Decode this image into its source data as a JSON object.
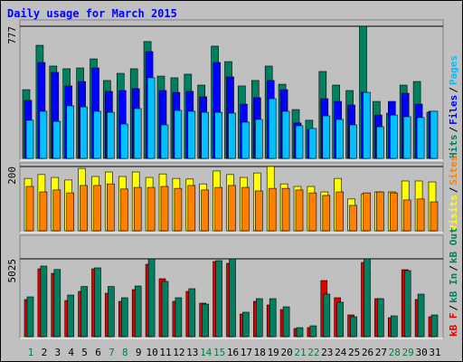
{
  "chart_data": [
    {
      "type": "bar",
      "title": "Daily usage for March 2015",
      "ylim": [
        0,
        777
      ],
      "yticks": [
        777
      ],
      "grid": true,
      "legend_separator": "/",
      "series": [
        {
          "name": "Hits",
          "color": "#008060",
          "values": [
            404,
            665,
            543,
            527,
            532,
            585,
            458,
            500,
            527,
            687,
            484,
            474,
            495,
            431,
            660,
            569,
            426,
            458,
            543,
            436,
            287,
            224,
            511,
            431,
            399,
            777,
            335,
            266,
            431,
            452,
            271
          ]
        },
        {
          "name": "Files",
          "color": "#0000ff",
          "values": [
            341,
            564,
            506,
            426,
            452,
            532,
            394,
            399,
            410,
            628,
            399,
            388,
            394,
            362,
            564,
            479,
            319,
            357,
            458,
            404,
            208,
            170,
            351,
            335,
            314,
            388,
            255,
            335,
            383,
            319,
            277
          ]
        },
        {
          "name": "Pages",
          "color": "#00c0ff",
          "values": [
            224,
            277,
            218,
            309,
            303,
            277,
            271,
            202,
            293,
            474,
            197,
            282,
            277,
            271,
            271,
            266,
            213,
            229,
            351,
            277,
            192,
            176,
            250,
            229,
            197,
            388,
            186,
            255,
            245,
            240,
            277
          ]
        }
      ]
    },
    {
      "type": "bar",
      "ylim": [
        0,
        200
      ],
      "yticks": [
        200
      ],
      "grid": true,
      "legend_separator": "/",
      "series": [
        {
          "name": "Visits",
          "color": "#ffff00",
          "values": [
            163,
            175,
            166,
            158,
            194,
            169,
            183,
            169,
            183,
            166,
            177,
            163,
            161,
            146,
            186,
            175,
            166,
            180,
            200,
            146,
            138,
            138,
            121,
            163,
            99,
            115,
            121,
            121,
            155,
            155,
            152
          ]
        },
        {
          "name": "Sites",
          "color": "#ff8000",
          "values": [
            138,
            121,
            127,
            118,
            141,
            141,
            146,
            130,
            135,
            135,
            138,
            132,
            141,
            127,
            135,
            141,
            135,
            124,
            132,
            132,
            127,
            118,
            110,
            121,
            79,
            118,
            121,
            118,
            96,
            99,
            90
          ]
        }
      ]
    },
    {
      "type": "bar",
      "ylim": [
        0,
        5025
      ],
      "yticks": [
        5025
      ],
      "grid": true,
      "legend_separator": "/",
      "categories": [
        "1",
        "2",
        "3",
        "4",
        "5",
        "6",
        "7",
        "8",
        "9",
        "10",
        "11",
        "12",
        "13",
        "14",
        "15",
        "16",
        "17",
        "18",
        "19",
        "20",
        "21",
        "22",
        "23",
        "24",
        "25",
        "26",
        "27",
        "28",
        "29",
        "30",
        "31"
      ],
      "highlight_categories": [
        0,
        6,
        7,
        13,
        14,
        20,
        21,
        27,
        28
      ],
      "highlight_color": "#008040",
      "series": [
        {
          "name": "kB F",
          "color": "#e00000",
          "values": [
            2396,
            4382,
            4090,
            2337,
            2921,
            4382,
            2805,
            2279,
            3038,
            4675,
            3740,
            2279,
            2921,
            2162,
            4850,
            4733,
            1461,
            2279,
            2045,
            1753,
            526,
            584,
            3623,
            2513,
            1402,
            4792,
            2454,
            1227,
            4324,
            2396,
            1285
          ]
        },
        {
          "name": "kB In",
          "color": "#008060",
          "values": [
            2571,
            4558,
            4336,
            2688,
            3240,
            4442,
            3240,
            2513,
            3272,
            5025,
            3564,
            2513,
            3096,
            2104,
            4908,
            5025,
            1578,
            2454,
            2454,
            1928,
            584,
            701,
            2746,
            2221,
            1285,
            5025,
            2454,
            1344,
            4267,
            2746,
            1402
          ]
        }
      ],
      "legend_only": [
        {
          "name": "kB Out",
          "color": "#008060"
        }
      ]
    }
  ]
}
